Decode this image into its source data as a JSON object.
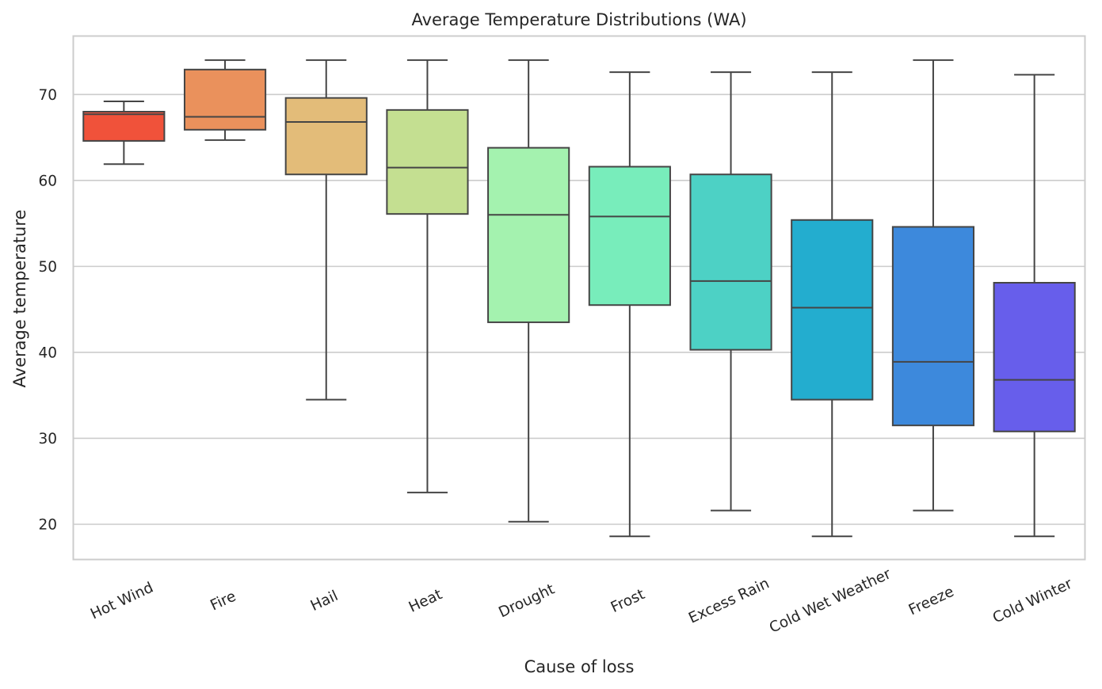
{
  "chart_data": {
    "type": "box",
    "title": "Average Temperature Distributions (WA)",
    "xlabel": "Cause of loss",
    "ylabel": "Average temperature",
    "ylim": [
      15.9,
      76.8
    ],
    "yticks": [
      20,
      30,
      40,
      50,
      60,
      70
    ],
    "grid": "horizontal",
    "categories": [
      "Hot Wind",
      "Fire",
      "Hail",
      "Heat",
      "Drought",
      "Frost",
      "Excess Rain",
      "Cold Wet Weather",
      "Freeze",
      "Cold Winter"
    ],
    "boxes": [
      {
        "category": "Hot Wind",
        "whisker_low": 61.9,
        "q1": 64.6,
        "median": 67.7,
        "q3": 68.0,
        "whisker_high": 69.2,
        "color": "#f0523a"
      },
      {
        "category": "Fire",
        "whisker_low": 64.7,
        "q1": 65.9,
        "median": 67.4,
        "q3": 72.9,
        "whisker_high": 74.0,
        "color": "#ea915c"
      },
      {
        "category": "Hail",
        "whisker_low": 34.5,
        "q1": 60.7,
        "median": 66.8,
        "q3": 69.6,
        "whisker_high": 74.0,
        "color": "#e3bc79"
      },
      {
        "category": "Heat",
        "whisker_low": 23.7,
        "q1": 56.1,
        "median": 61.5,
        "q3": 68.2,
        "whisker_high": 74.0,
        "color": "#c4df91"
      },
      {
        "category": "Drought",
        "whisker_low": 20.3,
        "q1": 43.5,
        "median": 56.0,
        "q3": 63.8,
        "whisker_high": 74.0,
        "color": "#a4f2af"
      },
      {
        "category": "Frost",
        "whisker_low": 18.6,
        "q1": 45.5,
        "median": 55.8,
        "q3": 61.6,
        "whisker_high": 72.6,
        "color": "#78edbb"
      },
      {
        "category": "Excess Rain",
        "whisker_low": 21.6,
        "q1": 40.3,
        "median": 48.3,
        "q3": 60.7,
        "whisker_high": 72.6,
        "color": "#4dd1c5"
      },
      {
        "category": "Cold Wet Weather",
        "whisker_low": 18.6,
        "q1": 34.5,
        "median": 45.2,
        "q3": 55.4,
        "whisker_high": 72.6,
        "color": "#23adcf"
      },
      {
        "category": "Freeze",
        "whisker_low": 21.6,
        "q1": 31.5,
        "median": 38.9,
        "q3": 54.6,
        "whisker_high": 74.0,
        "color": "#3d89dc"
      },
      {
        "category": "Cold Winter",
        "whisker_low": 18.6,
        "q1": 30.8,
        "median": 36.8,
        "q3": 48.1,
        "whisker_high": 72.3,
        "color": "#675eeb"
      }
    ]
  }
}
